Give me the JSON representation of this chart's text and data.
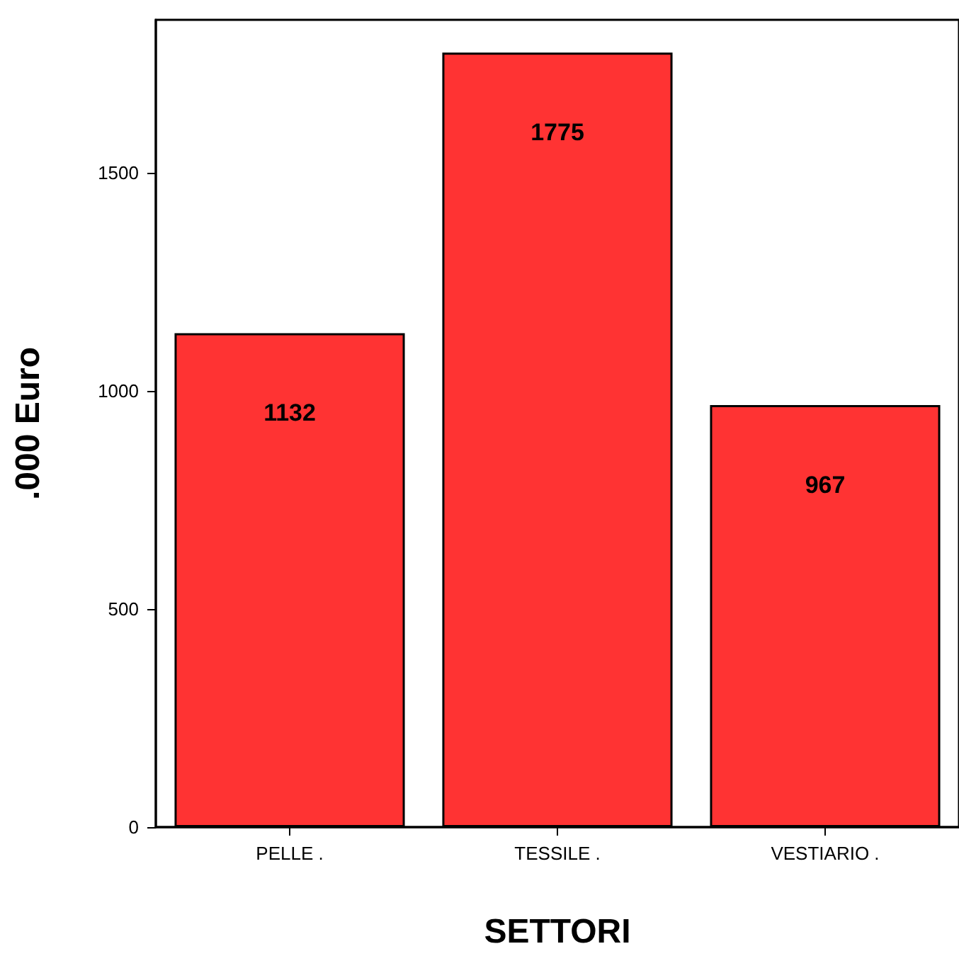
{
  "chart_data": {
    "type": "bar",
    "xlabel": "SETTORI",
    "ylabel": ".000 Euro",
    "categories": [
      "PELLE .",
      "TESSILE .",
      "VESTIARIO ."
    ],
    "values": [
      1132,
      1775,
      967
    ],
    "color": "#ff3333",
    "ylim": [
      0,
      1850
    ],
    "yticks": [
      0,
      500,
      1000,
      1500
    ],
    "grid": false,
    "data_labels": true
  }
}
